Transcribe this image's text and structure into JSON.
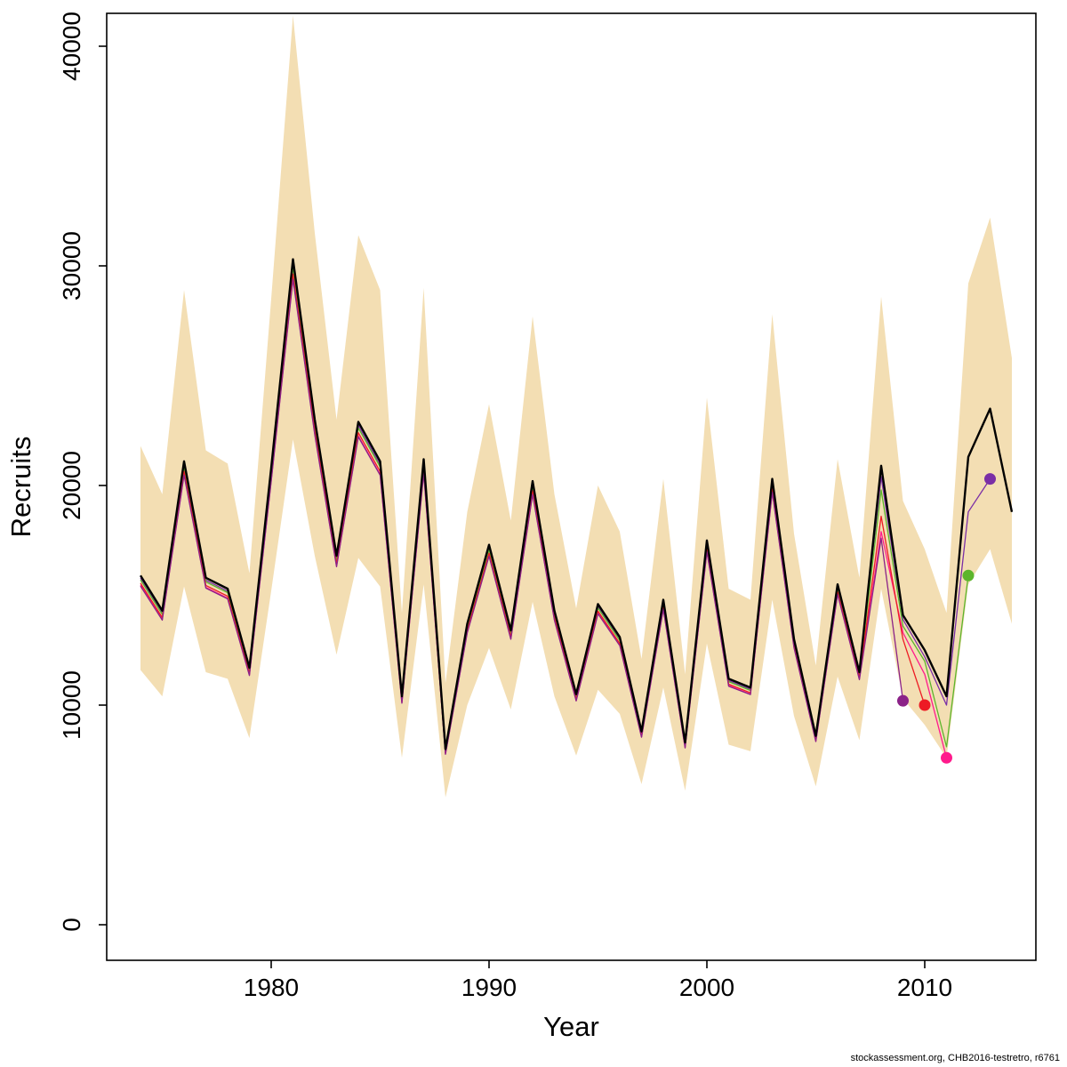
{
  "footer": {
    "credit": "stockassessment.org, CHB2016-testretro, r6761"
  },
  "chart_data": {
    "type": "line",
    "title": "",
    "xlabel": "Year",
    "ylabel": "Recruits",
    "xlim": [
      1972.45,
      2015.1
    ],
    "ylim": [
      -1620,
      41500
    ],
    "x_ticks": [
      1980,
      1990,
      2000,
      2010
    ],
    "x_tick_labels": [
      "1980",
      "1990",
      "2000",
      "2010"
    ],
    "y_ticks": [
      0,
      10000,
      20000,
      30000,
      40000
    ],
    "y_tick_labels": [
      "0",
      "10000",
      "20000",
      "30000",
      "40000"
    ],
    "grid": false,
    "legend": "none",
    "band_color": "#F3DEB3",
    "years": [
      1974,
      1975,
      1976,
      1977,
      1978,
      1979,
      1980,
      1981,
      1982,
      1983,
      1984,
      1985,
      1986,
      1987,
      1988,
      1989,
      1990,
      1991,
      1992,
      1993,
      1994,
      1995,
      1996,
      1997,
      1998,
      1999,
      2000,
      2001,
      2002,
      2003,
      2004,
      2005,
      2006,
      2007,
      2008,
      2009,
      2010,
      2011,
      2012,
      2013,
      2014
    ],
    "band_lower": [
      11600,
      10400,
      15400,
      11500,
      11200,
      8500,
      15200,
      22100,
      16800,
      12300,
      16700,
      15400,
      7600,
      15500,
      5800,
      10000,
      12600,
      9800,
      14700,
      10400,
      7700,
      10700,
      9600,
      6400,
      10800,
      6100,
      12800,
      8200,
      7900,
      14800,
      9500,
      6300,
      11300,
      8400,
      15300,
      10300,
      9100,
      7600,
      15500,
      17100,
      13700
    ],
    "band_upper": [
      21800,
      19600,
      28900,
      21600,
      21000,
      16000,
      28500,
      41400,
      31500,
      23000,
      31400,
      28900,
      14200,
      29000,
      11000,
      18800,
      23700,
      18400,
      27700,
      19600,
      14400,
      20000,
      17900,
      12100,
      20300,
      11400,
      24000,
      15300,
      14800,
      27800,
      17800,
      11800,
      21200,
      15800,
      28600,
      19300,
      17100,
      14200,
      29200,
      32200,
      25800
    ],
    "base_series": {
      "name": "base-run",
      "color": "#000000",
      "width": 2.4,
      "values": [
        15900,
        14300,
        21100,
        15800,
        15300,
        11700,
        20800,
        30300,
        23000,
        16800,
        22900,
        21100,
        10400,
        21200,
        8000,
        13700,
        17300,
        13400,
        20200,
        14300,
        10500,
        14600,
        13100,
        8800,
        14800,
        8300,
        17500,
        11200,
        10800,
        20300,
        13000,
        8600,
        15500,
        11500,
        20900,
        14100,
        12500,
        10400,
        21300,
        23500,
        18800
      ]
    },
    "retro_series": [
      {
        "name": "peel-2013",
        "color": "#7A2EA6",
        "end_year": 2013,
        "end_value": 20300,
        "values": [
          15790,
          14200,
          20950,
          15690,
          15190,
          11620,
          20650,
          30090,
          22840,
          16680,
          22740,
          20950,
          10330,
          21050,
          7940,
          13600,
          17180,
          13310,
          20060,
          14200,
          10430,
          14500,
          13010,
          8740,
          14700,
          8240,
          17380,
          11120,
          10720,
          20160,
          12910,
          8540,
          15390,
          11420,
          20400,
          13900,
          12200,
          10000,
          18800,
          20300
        ]
      },
      {
        "name": "peel-2012",
        "color": "#5CB52C",
        "end_year": 2012,
        "end_value": 15900,
        "values": [
          15710,
          14130,
          20850,
          15610,
          15120,
          11560,
          20550,
          29940,
          22720,
          16600,
          22620,
          20850,
          10280,
          20940,
          7900,
          13540,
          17090,
          13240,
          19960,
          14130,
          10370,
          14420,
          12940,
          8690,
          14620,
          8200,
          17290,
          11070,
          10670,
          20060,
          12840,
          8500,
          15310,
          11360,
          19800,
          13600,
          12000,
          8100,
          15900
        ]
      },
      {
        "name": "peel-2011",
        "color": "#FF1A8C",
        "end_year": 2011,
        "end_value": 7600,
        "values": [
          15460,
          13900,
          20510,
          15360,
          14870,
          11370,
          20220,
          29450,
          22360,
          16330,
          22260,
          20510,
          10110,
          20610,
          7780,
          13320,
          16820,
          13020,
          19630,
          13900,
          10210,
          14190,
          12730,
          8550,
          14390,
          8070,
          17010,
          10890,
          10500,
          19730,
          12640,
          8360,
          15070,
          11180,
          17900,
          13300,
          11400,
          7600
        ]
      },
      {
        "name": "peel-2010",
        "color": "#ED1B24",
        "end_year": 2010,
        "end_value": 10000,
        "values": [
          15550,
          13990,
          20640,
          15450,
          14960,
          11440,
          20340,
          29630,
          22490,
          16430,
          22400,
          20640,
          10170,
          20730,
          7820,
          13400,
          16920,
          13100,
          19760,
          13990,
          10270,
          14280,
          12810,
          8610,
          14470,
          8120,
          17120,
          10950,
          10560,
          19850,
          12710,
          8410,
          15160,
          11250,
          18600,
          13000,
          10000
        ]
      },
      {
        "name": "peel-2009",
        "color": "#8B2288",
        "end_year": 2009,
        "end_value": 10200,
        "values": [
          15420,
          13870,
          20470,
          15330,
          14840,
          11350,
          20180,
          29390,
          22310,
          16300,
          22210,
          20470,
          10090,
          20560,
          7760,
          13290,
          16780,
          13000,
          19590,
          13870,
          10190,
          14160,
          12710,
          8540,
          14360,
          8050,
          16980,
          10860,
          10480,
          19690,
          12610,
          8340,
          15040,
          11160,
          17600,
          10200
        ]
      }
    ]
  }
}
